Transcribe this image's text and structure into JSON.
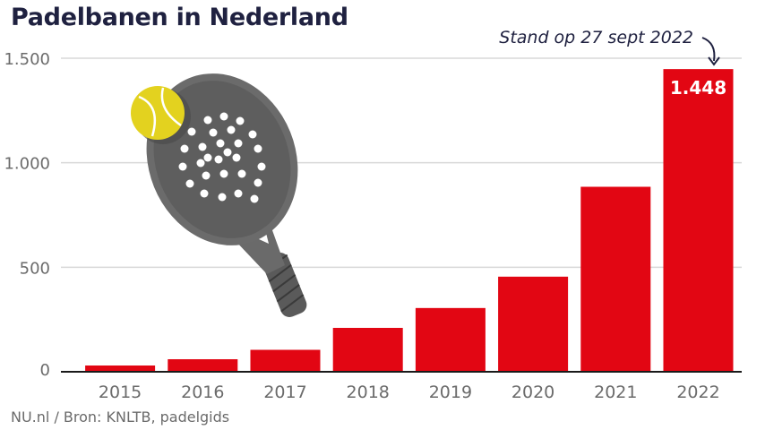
{
  "title": "Padelbanen in Nederland",
  "annotation": "Stand op 27 sept 2022",
  "source": "NU.nl / Bron: KNLTB, padelgids",
  "colors": {
    "bar": "#e20613",
    "title": "#1f2140",
    "grid": "#d9d9d9",
    "axis": "#1a1a1a",
    "tick_text": "#6b6b6b",
    "value_label": "#ffffff"
  },
  "illustration": "padel-racket-and-ball-icon",
  "chart_data": {
    "type": "bar",
    "categories": [
      "2015",
      "2016",
      "2017",
      "2018",
      "2019",
      "2020",
      "2021",
      "2022"
    ],
    "values": [
      30,
      60,
      105,
      210,
      305,
      455,
      885,
      1448
    ],
    "value_labels": [
      "",
      "",
      "",
      "",
      "",
      "",
      "",
      "1.448"
    ],
    "yticks": [
      0,
      500,
      1000,
      1500
    ],
    "ytick_labels": [
      "0",
      "500",
      "1.000",
      "1.500"
    ],
    "ylim": [
      0,
      1500
    ],
    "grid": true,
    "legend": "none",
    "title": "Padelbanen in Nederland",
    "xlabel": "",
    "ylabel": ""
  }
}
